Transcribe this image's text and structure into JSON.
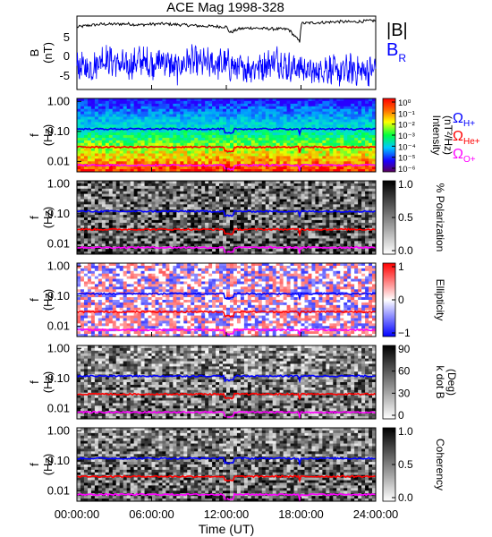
{
  "chart_data": [
    {
      "type": "line",
      "title": "ACE Mag 1998-328",
      "ylabel": "B",
      "yunits": "(nT)",
      "ylim": [
        -10,
        10
      ],
      "yticks": [
        "5",
        "0",
        "-5"
      ],
      "xlim_hours": [
        0,
        24
      ],
      "series": [
        {
          "name": "|B|",
          "color": "#000000",
          "x": [
            0,
            1,
            2,
            3,
            4,
            5,
            6,
            7,
            8,
            9,
            10,
            11,
            12,
            12.3,
            13,
            14,
            15,
            16,
            17,
            17.9,
            18,
            19,
            20,
            21,
            22,
            23,
            24
          ],
          "values": [
            7,
            7.5,
            7.8,
            7.8,
            7.9,
            7.6,
            7.8,
            7.9,
            7.7,
            7.5,
            7.3,
            7.2,
            7.1,
            5.5,
            6.5,
            6.8,
            6.6,
            6.5,
            6.4,
            3,
            8,
            8.2,
            8.3,
            8.5,
            8.4,
            8.6,
            8.8
          ]
        },
        {
          "name": "B",
          "subscript": "R",
          "color": "#0000ff",
          "x": [
            0,
            1,
            2,
            3,
            4,
            5,
            6,
            7,
            8,
            9,
            10,
            11,
            12,
            13,
            14,
            15,
            16,
            17,
            18,
            19,
            20,
            21,
            22,
            23,
            24
          ],
          "values": [
            -3.5,
            -4.5,
            -1.5,
            -2.5,
            -4,
            -2,
            -3,
            -2,
            -4.5,
            -2,
            -3,
            -3,
            -3,
            -4.5,
            -4,
            -3.5,
            -2,
            -4,
            -4,
            -5.5,
            -4,
            -5.5,
            -4.5,
            -5,
            -4.5
          ]
        }
      ]
    },
    {
      "type": "heatmap",
      "ylabel": "f",
      "yunits": "(Hz)",
      "yscale": "log",
      "yticks": [
        "1.00",
        "0.10",
        "0.01"
      ],
      "colorbar": {
        "label": "Intensity",
        "units": "(nT²/Hz)",
        "scale": "log",
        "ticks": [
          "10⁰",
          "10⁻¹",
          "10⁻²",
          "10⁻³",
          "10⁻⁴",
          "10⁻⁵",
          "10⁻⁶"
        ],
        "colormap": "rainbow"
      },
      "overlays": [
        {
          "name": "Ω",
          "subscript": "H+",
          "color": "#0000ff",
          "hz": 0.12
        },
        {
          "name": "Ω",
          "subscript": "He+",
          "color": "#ff0000",
          "hz": 0.03
        },
        {
          "name": "Ω",
          "subscript": "O+",
          "color": "#ff00ff",
          "hz": 0.0075
        }
      ]
    },
    {
      "type": "heatmap",
      "ylabel": "f",
      "yunits": "(Hz)",
      "yscale": "log",
      "yticks": [
        "1.00",
        "0.10",
        "0.01"
      ],
      "colorbar": {
        "label": "% Polarization",
        "ticks": [
          "1.0",
          "0.5",
          "0.0"
        ],
        "colormap": "grayscale"
      }
    },
    {
      "type": "heatmap",
      "ylabel": "f",
      "yunits": "(Hz)",
      "yscale": "log",
      "yticks": [
        "1.00",
        "0.10",
        "0.01"
      ],
      "colorbar": {
        "label": "Ellipticity",
        "ticks": [
          "1",
          "0",
          "−1"
        ],
        "colormap": "blue-white-red"
      }
    },
    {
      "type": "heatmap",
      "ylabel": "f",
      "yunits": "(Hz)",
      "yscale": "log",
      "yticks": [
        "1.00",
        "0.10",
        "0.01"
      ],
      "colorbar": {
        "label": "k dot B",
        "units": "(Deg)",
        "ticks": [
          "90",
          "60",
          "30",
          "0"
        ],
        "colormap": "grayscale"
      }
    },
    {
      "type": "heatmap",
      "ylabel": "f",
      "yunits": "(Hz)",
      "yscale": "log",
      "yticks": [
        "1.00",
        "0.10",
        "0.01"
      ],
      "colorbar": {
        "label": "Coherency",
        "ticks": [
          "1.0",
          "0.5",
          "0.0"
        ],
        "colormap": "grayscale"
      }
    }
  ],
  "xaxis": {
    "ticks": [
      "00:00:00",
      "06:00:00",
      "12:00:00",
      "18:00:00",
      "24:00:00"
    ],
    "label": "Time (UT)"
  }
}
